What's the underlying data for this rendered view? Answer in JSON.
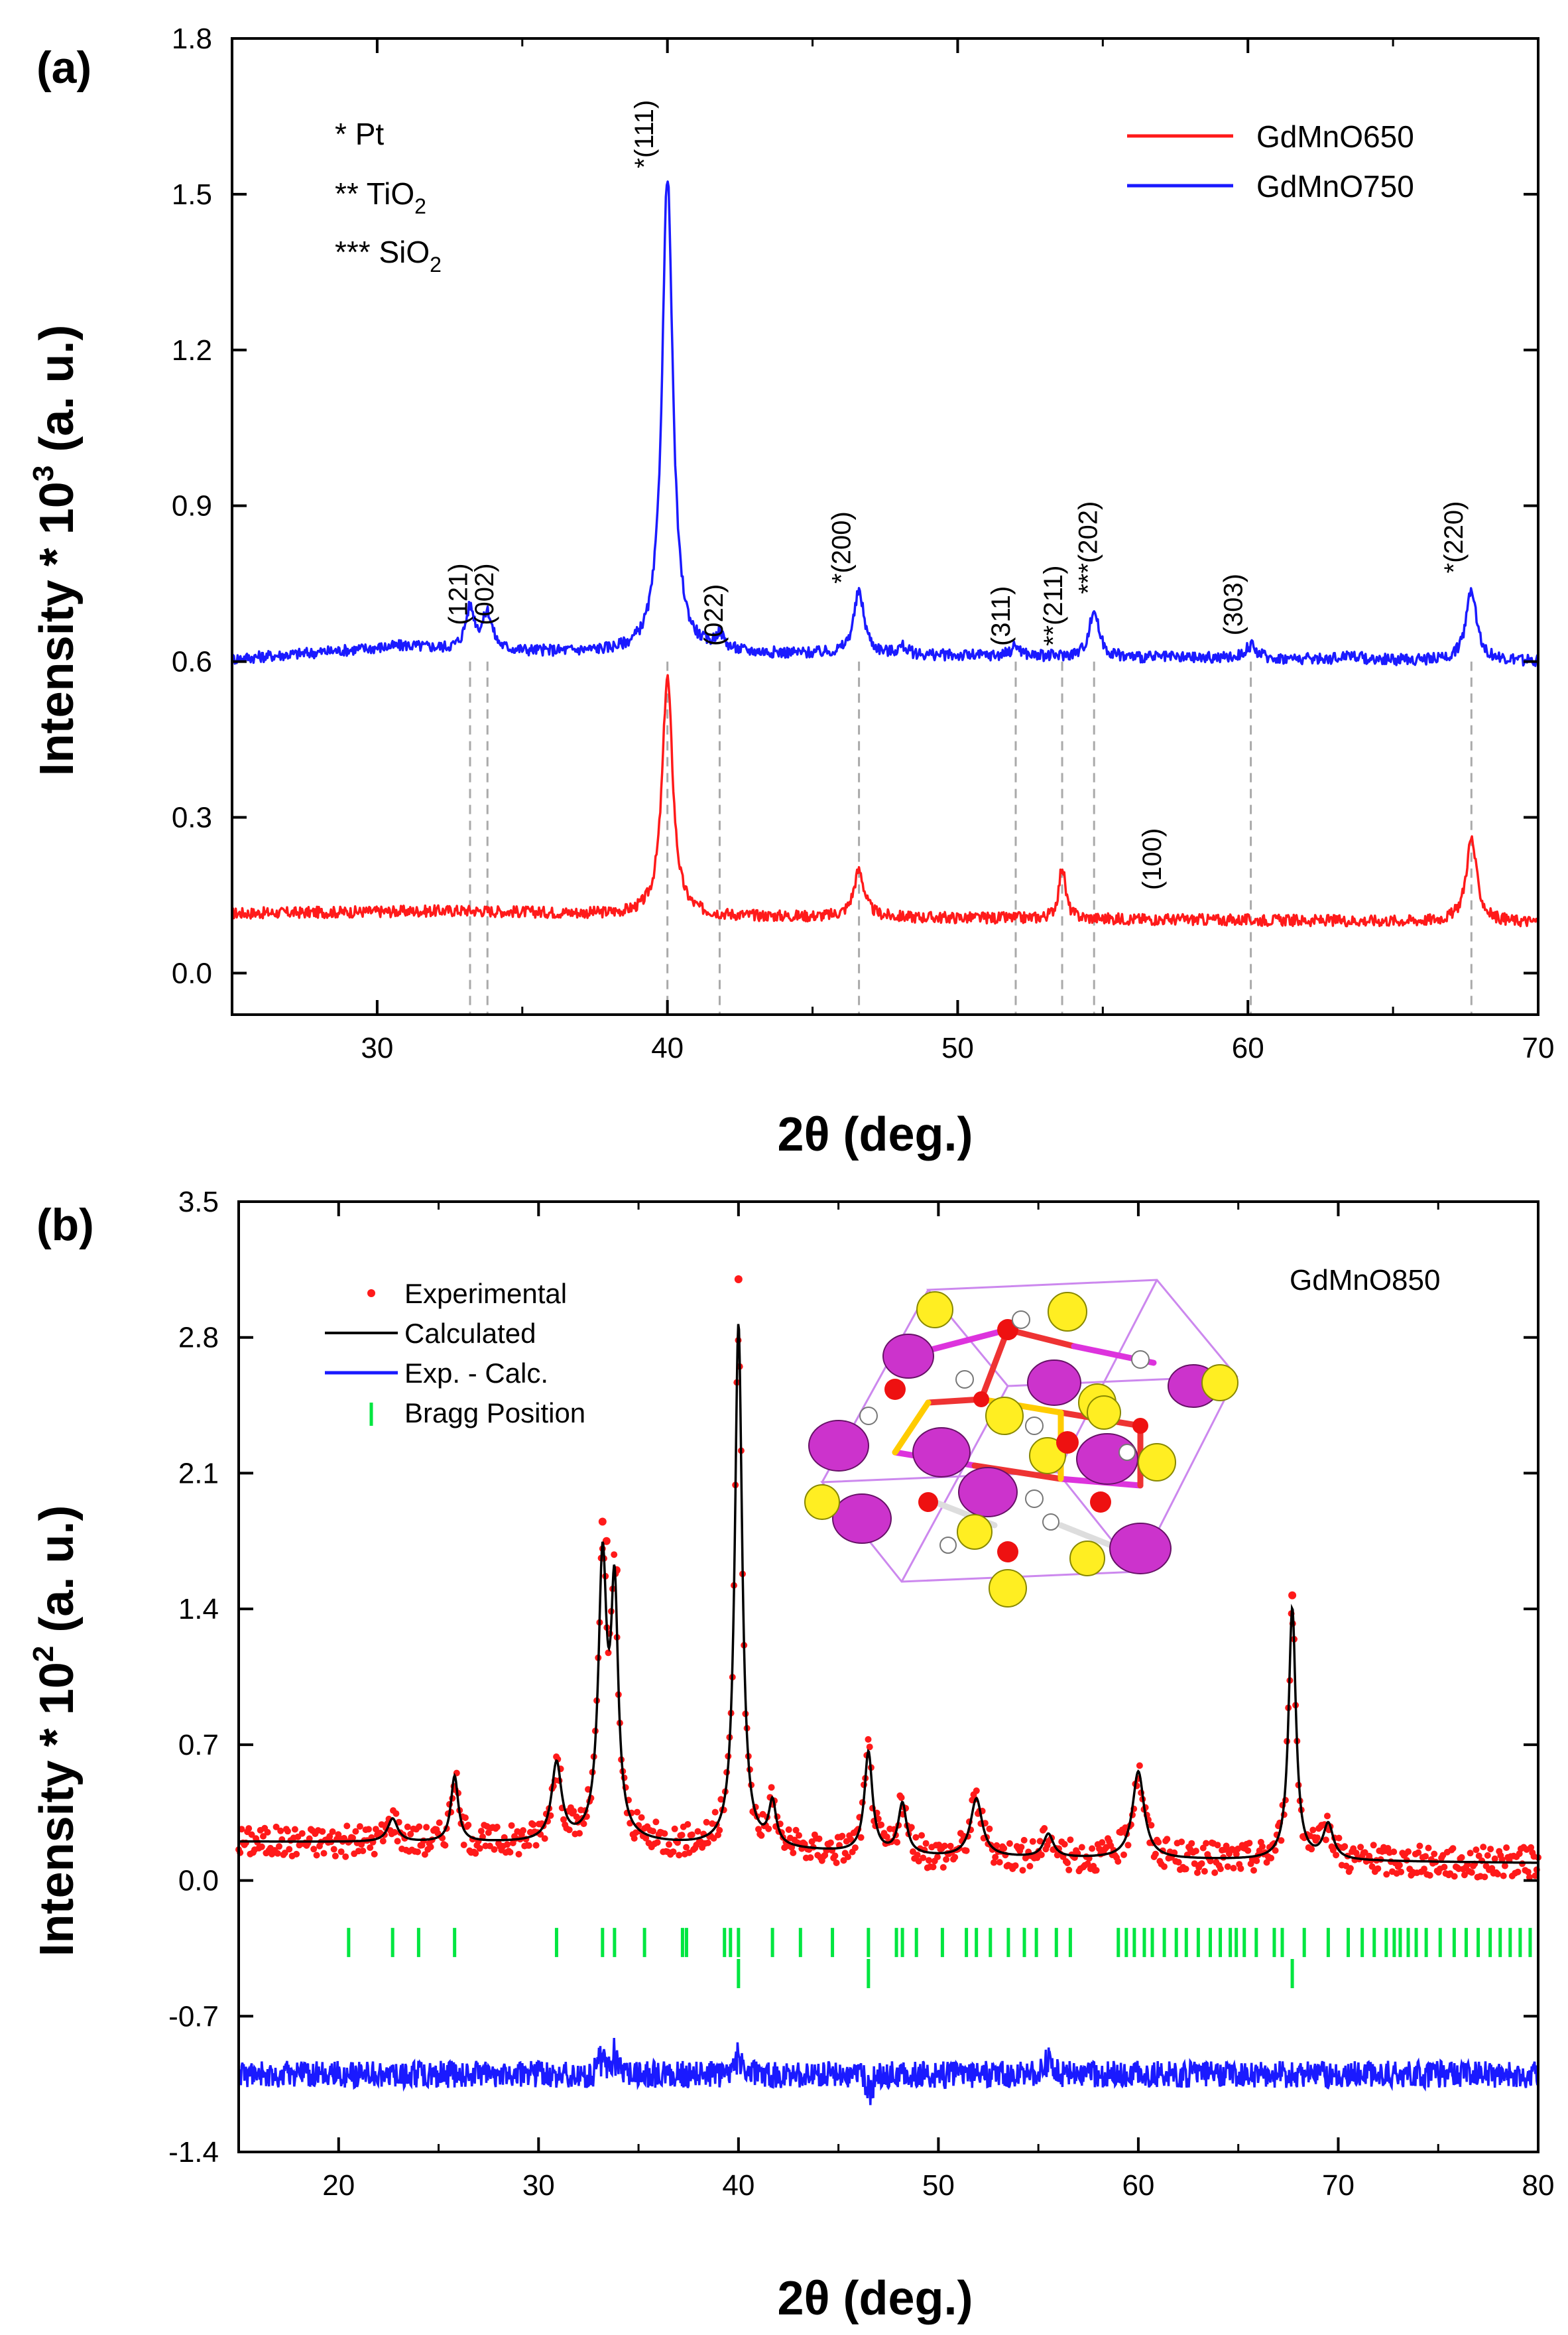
{
  "colors": {
    "red": "#ff1a1a",
    "blue": "#1a1aff",
    "black": "#000000",
    "green": "#00e640",
    "guide": "#aaaaaa"
  },
  "chart_data": [
    {
      "type": "line",
      "panel_label": "(a)",
      "xlabel": "2θ (deg.)",
      "ylabel": "Intensity * 10³ (a. u.)",
      "ylabel_parts": {
        "main": "Intensity * 10",
        "sup": "3",
        "tail": " (a. u.)"
      },
      "xlim": [
        25,
        70
      ],
      "ylim": [
        -0.08,
        1.8
      ],
      "xticks": [
        30,
        40,
        50,
        60,
        70
      ],
      "yticks": [
        0.0,
        0.3,
        0.6,
        0.9,
        1.2,
        1.5,
        1.8
      ],
      "ytick_labels": [
        "0.0",
        "0.3",
        "0.6",
        "0.9",
        "1.2",
        "1.5",
        "1.8"
      ],
      "notes": [
        {
          "prefix": "* ",
          "text": "Pt",
          "sub": ""
        },
        {
          "prefix": "** ",
          "text": "TiO",
          "sub": "2"
        },
        {
          "prefix": "*** ",
          "text": "SiO",
          "sub": "2"
        }
      ],
      "legend": [
        "GdMnO650",
        "GdMnO750"
      ],
      "series": [
        {
          "name": "GdMnO650",
          "color": "#ff1a1a",
          "baseline": [
            [
              25,
              0.115
            ],
            [
              33,
              0.12
            ],
            [
              40,
              0.11
            ],
            [
              70,
              0.098
            ]
          ],
          "peaks": [
            {
              "x": 40.0,
              "h": 0.46,
              "w": 0.22
            },
            {
              "x": 46.6,
              "h": 0.09,
              "w": 0.22
            },
            {
              "x": 53.6,
              "h": 0.1,
              "w": 0.14
            },
            {
              "x": 67.7,
              "h": 0.16,
              "w": 0.22
            }
          ]
        },
        {
          "name": "GdMnO750",
          "color": "#1a1aff",
          "baseline": [
            [
              25,
              0.605
            ],
            [
              31,
              0.63
            ],
            [
              33,
              0.62
            ],
            [
              70,
              0.6
            ]
          ],
          "peaks": [
            {
              "x": 33.2,
              "h": 0.08,
              "w": 0.2
            },
            {
              "x": 33.8,
              "h": 0.07,
              "w": 0.2
            },
            {
              "x": 40.0,
              "h": 0.92,
              "w": 0.22
            },
            {
              "x": 41.8,
              "h": 0.03,
              "w": 0.18
            },
            {
              "x": 46.6,
              "h": 0.12,
              "w": 0.22
            },
            {
              "x": 48.1,
              "h": 0.015,
              "w": 0.2
            },
            {
              "x": 52.0,
              "h": 0.02,
              "w": 0.2
            },
            {
              "x": 54.7,
              "h": 0.09,
              "w": 0.2
            },
            {
              "x": 60.1,
              "h": 0.025,
              "w": 0.25
            },
            {
              "x": 63.5,
              "h": 0.01,
              "w": 0.3
            },
            {
              "x": 67.7,
              "h": 0.14,
              "w": 0.22
            }
          ]
        }
      ],
      "guide_lines": [
        33.2,
        33.8,
        40.0,
        41.8,
        46.6,
        52.0,
        53.6,
        54.7,
        60.1,
        67.7
      ],
      "annotations": [
        {
          "text": "(121)",
          "x": 33.1,
          "y": 0.67
        },
        {
          "text": "(002)",
          "x": 34.0,
          "y": 0.67
        },
        {
          "text": "*(111)",
          "x": 39.5,
          "y": 1.55
        },
        {
          "text": "(022)",
          "x": 41.9,
          "y": 0.63
        },
        {
          "text": "*(200)",
          "x": 46.3,
          "y": 0.75
        },
        {
          "text": "(311)",
          "x": 51.8,
          "y": 0.63
        },
        {
          "text": "**(211)",
          "x": 53.6,
          "y": 0.63
        },
        {
          "text": "***(202)",
          "x": 54.8,
          "y": 0.73
        },
        {
          "text": "(303)",
          "x": 59.8,
          "y": 0.65
        },
        {
          "text": "*(220)",
          "x": 67.4,
          "y": 0.77
        },
        {
          "text": "(100)",
          "x": 57.0,
          "y": 0.16
        }
      ]
    },
    {
      "type": "line",
      "panel_label": "(b)",
      "xlabel": "2θ (deg.)",
      "ylabel": "Intensity * 10² (a. u.)",
      "ylabel_parts": {
        "main": "Intensity * 10",
        "sup": "2",
        "tail": " (a. u.)"
      },
      "xlim": [
        15,
        80
      ],
      "ylim": [
        -1.4,
        3.5
      ],
      "xticks": [
        20,
        30,
        40,
        50,
        60,
        70,
        80
      ],
      "yticks": [
        -1.4,
        -0.7,
        0.0,
        0.7,
        1.4,
        2.1,
        2.8,
        3.5
      ],
      "ytick_labels": [
        "-1.4",
        "-0.7",
        "0.0",
        "0.7",
        "1.4",
        "2.1",
        "2.8",
        "3.5"
      ],
      "sample_label": "GdMnO850",
      "legend": [
        "Experimental",
        "Calculated",
        "Exp. - Calc.",
        "Bragg Position"
      ],
      "calc_baseline": [
        [
          15,
          0.2
        ],
        [
          35,
          0.19
        ],
        [
          50,
          0.12
        ],
        [
          80,
          0.09
        ]
      ],
      "peaks": [
        {
          "x": 22.7,
          "h": 0.12,
          "w": 0.3
        },
        {
          "x": 25.8,
          "h": 0.34,
          "w": 0.22
        },
        {
          "x": 30.9,
          "h": 0.4,
          "w": 0.3
        },
        {
          "x": 33.2,
          "h": 1.4,
          "w": 0.25
        },
        {
          "x": 33.8,
          "h": 1.22,
          "w": 0.22
        },
        {
          "x": 40.0,
          "h": 2.7,
          "w": 0.22
        },
        {
          "x": 41.7,
          "h": 0.22,
          "w": 0.22
        },
        {
          "x": 46.5,
          "h": 0.52,
          "w": 0.24
        },
        {
          "x": 48.2,
          "h": 0.26,
          "w": 0.25
        },
        {
          "x": 51.9,
          "h": 0.3,
          "w": 0.35
        },
        {
          "x": 55.5,
          "h": 0.12,
          "w": 0.3
        },
        {
          "x": 60.0,
          "h": 0.45,
          "w": 0.35
        },
        {
          "x": 67.7,
          "h": 1.3,
          "w": 0.22
        },
        {
          "x": 69.5,
          "h": 0.18,
          "w": 0.3
        }
      ],
      "bragg_row1_y": -0.32,
      "bragg_row1": [
        20.5,
        22.7,
        24.0,
        25.8,
        30.9,
        33.2,
        33.8,
        35.3,
        37.2,
        37.4,
        39.3,
        39.6,
        40.0,
        41.7,
        43.1,
        44.7,
        46.5,
        47.9,
        48.2,
        48.9,
        50.2,
        51.4,
        51.9,
        52.6,
        53.5,
        54.3,
        54.9,
        55.9,
        56.6,
        59.0,
        59.4,
        59.8,
        60.3,
        60.7,
        61.3,
        61.9,
        62.4,
        63.0,
        63.6,
        64.1,
        64.6,
        64.9,
        65.3,
        65.9,
        66.8,
        67.2,
        68.3,
        69.5,
        70.5,
        71.2,
        71.8,
        72.4,
        72.8,
        73.1,
        73.5,
        73.9,
        74.4,
        75.1,
        75.8,
        76.4,
        77.0,
        77.6,
        78.1,
        78.6,
        79.1,
        79.6
      ],
      "bragg_row2_y": -0.48,
      "bragg_row2": [
        40.0,
        46.5,
        67.7
      ],
      "diff_offset": -1.0,
      "diff_peaks": [
        {
          "x": 33.2,
          "h": 0.15
        },
        {
          "x": 33.8,
          "h": 0.12
        },
        {
          "x": 40.0,
          "h": 0.12
        },
        {
          "x": 46.5,
          "h": -0.1
        },
        {
          "x": 55.5,
          "h": 0.08
        }
      ],
      "exp_outliers": [
        {
          "x": 33.2,
          "y": 1.85
        },
        {
          "x": 33.4,
          "y": 1.75
        },
        {
          "x": 33.9,
          "y": 1.6
        },
        {
          "x": 40.0,
          "y": 3.1
        },
        {
          "x": 67.7,
          "y": 1.47
        }
      ]
    }
  ]
}
